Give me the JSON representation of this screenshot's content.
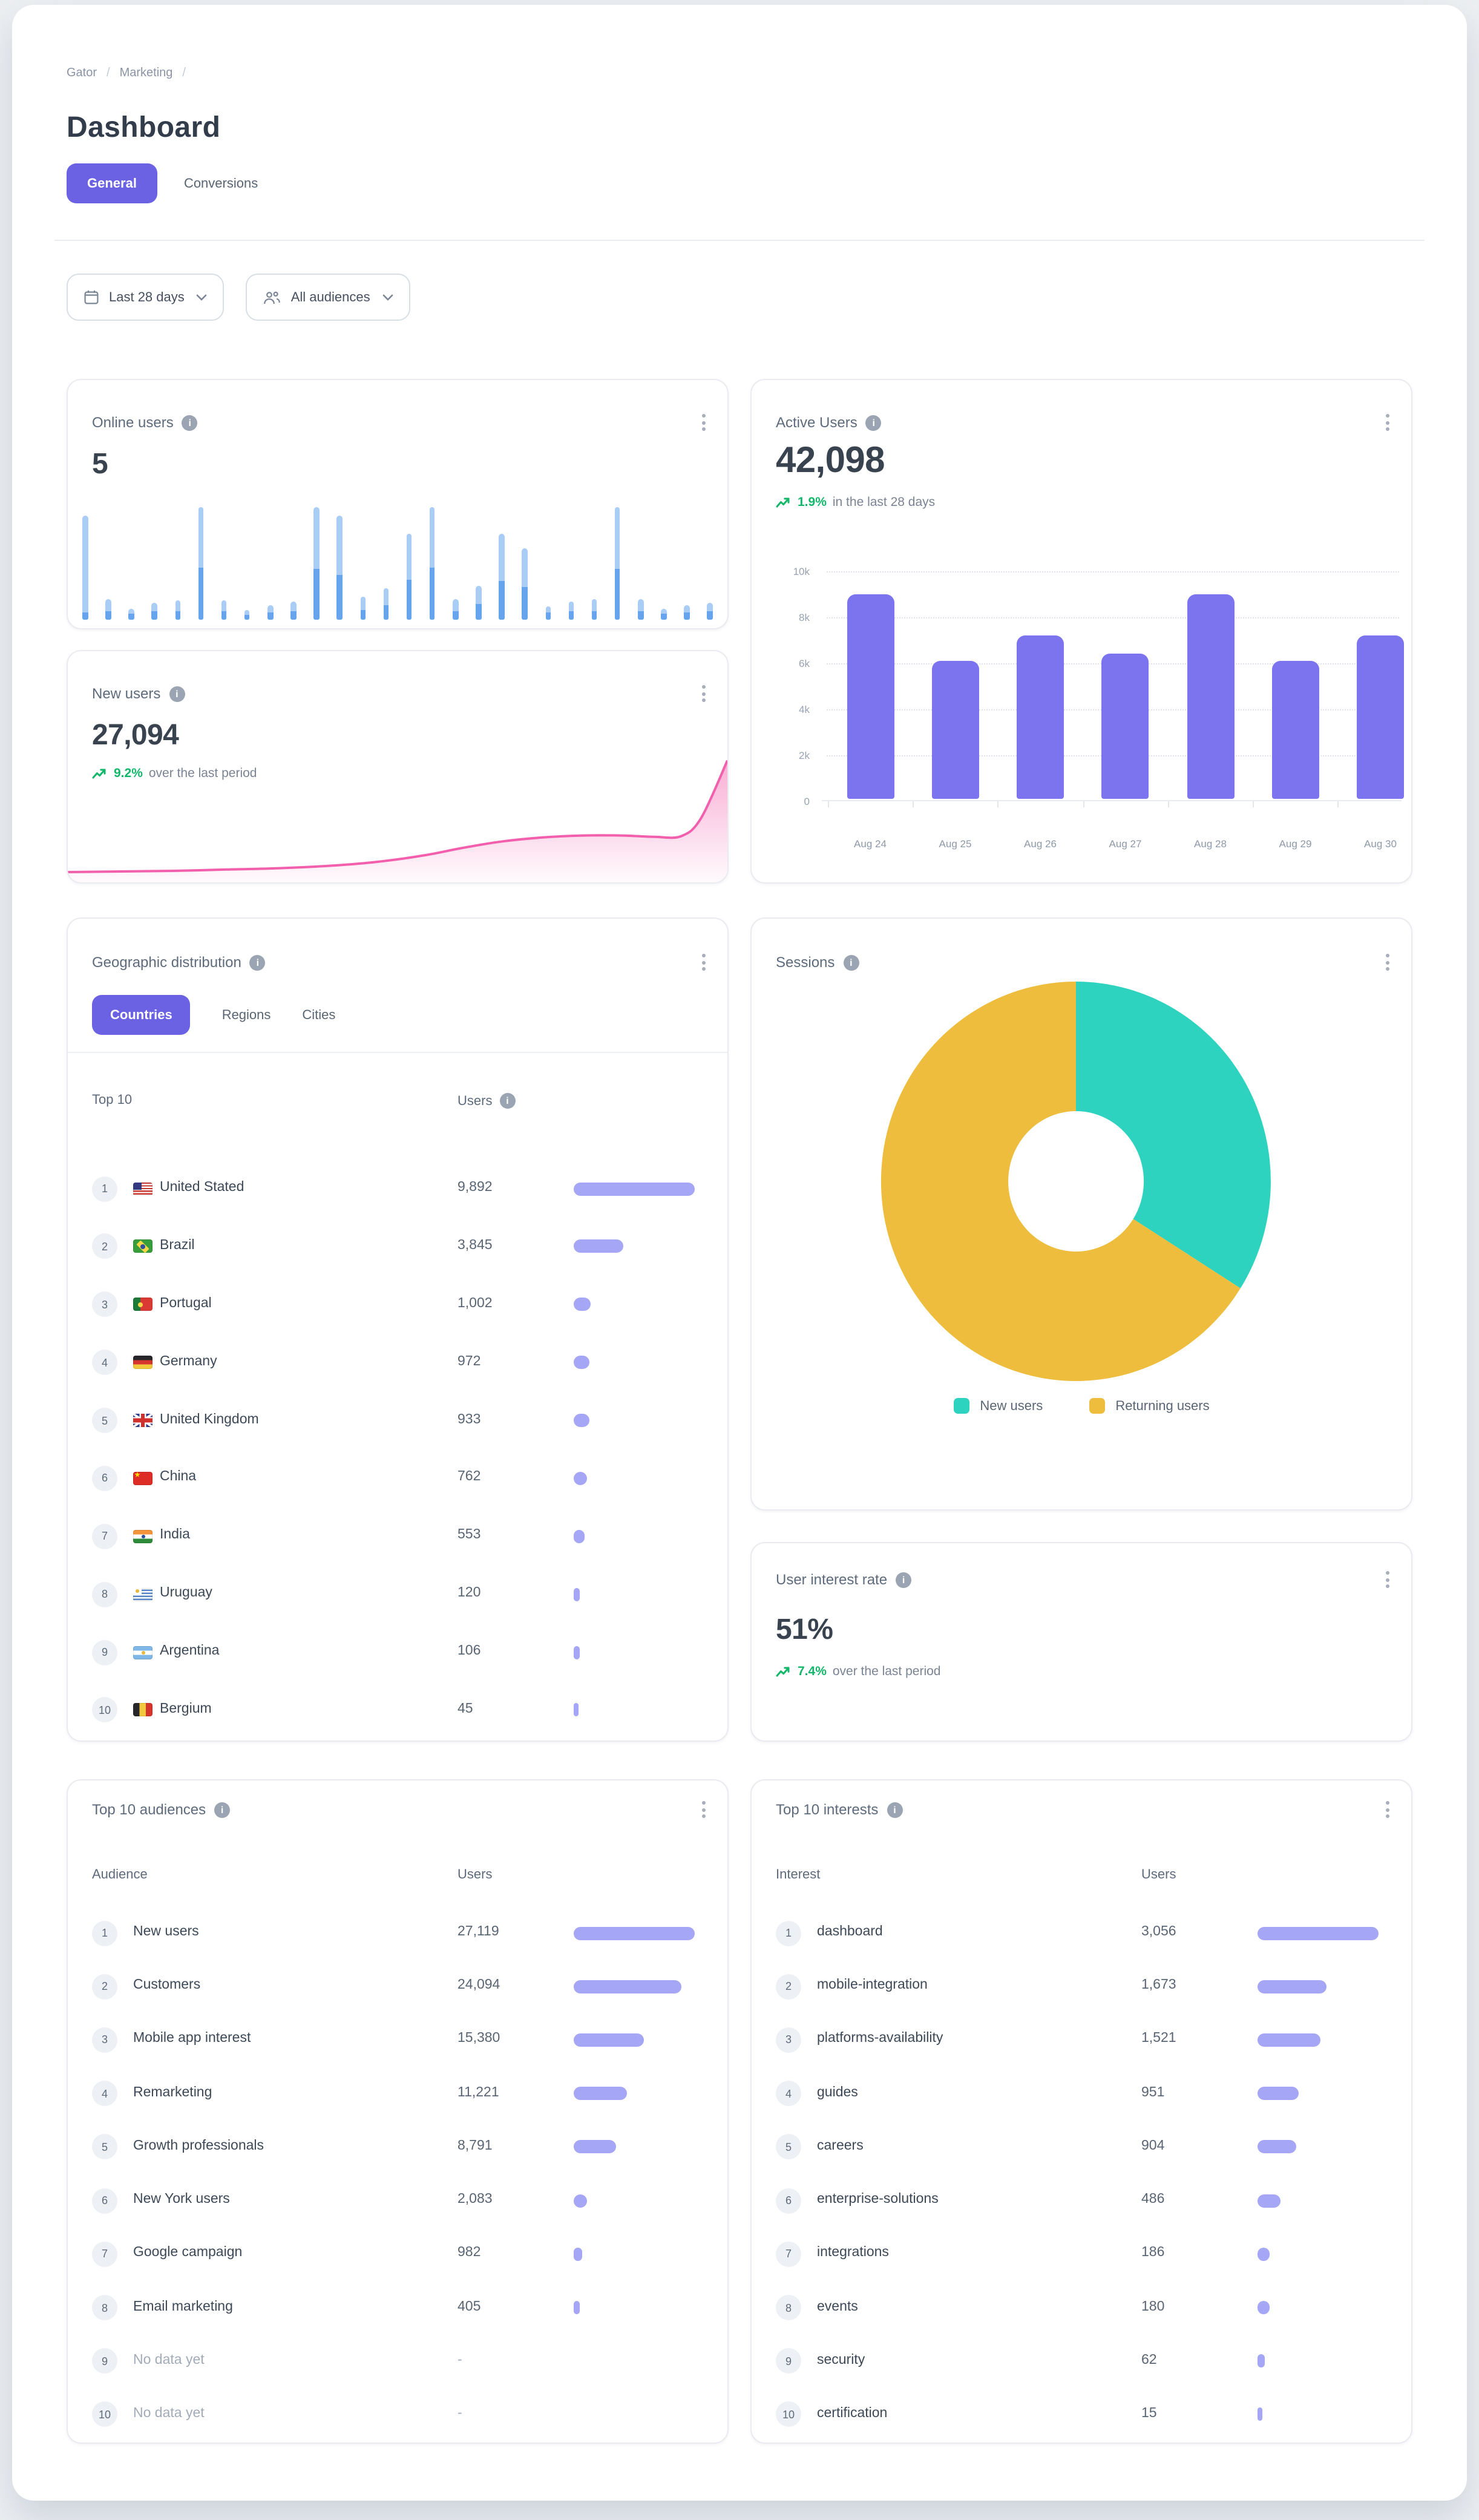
{
  "page": {
    "accent": "#6B61E3",
    "bar_purple": "#7C74EF",
    "mini_bar_purple": "#A5A7F6",
    "green": "#12B76A",
    "outer_background": "#EDEFF2"
  },
  "breadcrumb": {
    "items": [
      "Gator",
      "Marketing"
    ],
    "separator": "/"
  },
  "header": {
    "title": "Dashboard",
    "tabs": [
      {
        "label": "General",
        "active": true
      },
      {
        "label": "Conversions",
        "active": false
      }
    ]
  },
  "filters": {
    "date_range": "Last 28 days",
    "audience": "All audiences"
  },
  "icons": {
    "info": "i"
  },
  "cards": {
    "online_users": {
      "title": "Online users",
      "value": "5"
    },
    "active_users": {
      "title": "Active Users",
      "value": "42,098",
      "change": "1.9%",
      "change_suffix": "in the last 28 days"
    },
    "new_users": {
      "title": "New users",
      "value": "27,094",
      "change": "9.2%",
      "change_suffix": "over the last period"
    },
    "geographic": {
      "title": "Geographic distribution",
      "tabs": [
        "Countries",
        "Regions",
        "Cities"
      ],
      "active_tab": "Countries",
      "col1": "Top 10",
      "col2": "Users",
      "rows": [
        {
          "rank": 1,
          "flag": "us",
          "name": "United Stated",
          "users": "9,892",
          "value": 9892
        },
        {
          "rank": 2,
          "flag": "br",
          "name": "Brazil",
          "users": "3,845",
          "value": 3845
        },
        {
          "rank": 3,
          "flag": "pt",
          "name": "Portugal",
          "users": "1,002",
          "value": 1002
        },
        {
          "rank": 4,
          "flag": "de",
          "name": "Germany",
          "users": "972",
          "value": 972
        },
        {
          "rank": 5,
          "flag": "gb",
          "name": "United Kingdom",
          "users": "933",
          "value": 933
        },
        {
          "rank": 6,
          "flag": "cn",
          "name": "China",
          "users": "762",
          "value": 762
        },
        {
          "rank": 7,
          "flag": "in",
          "name": "India",
          "users": "553",
          "value": 553
        },
        {
          "rank": 8,
          "flag": "uy",
          "name": "Uruguay",
          "users": "120",
          "value": 120
        },
        {
          "rank": 9,
          "flag": "ar",
          "name": "Argentina",
          "users": "106",
          "value": 106
        },
        {
          "rank": 10,
          "flag": "be",
          "name": "Bergium",
          "users": "45",
          "value": 45
        }
      ]
    },
    "sessions": {
      "title": "Sessions",
      "legend": [
        {
          "label": "New users",
          "color": "#2DD3BE"
        },
        {
          "label": "Returning users",
          "color": "#EEBD3D"
        }
      ]
    },
    "interest_rate": {
      "title": "User interest rate",
      "value": "51%",
      "change": "7.4%",
      "change_suffix": "over the last period"
    },
    "audiences": {
      "title": "Top 10 audiences",
      "col1": "Audience",
      "col2": "Users",
      "rows": [
        {
          "rank": 1,
          "name": "New users",
          "users": "27,119",
          "value": 27119
        },
        {
          "rank": 2,
          "name": "Customers",
          "users": "24,094",
          "value": 24094
        },
        {
          "rank": 3,
          "name": "Mobile app interest",
          "users": "15,380",
          "value": 15380
        },
        {
          "rank": 4,
          "name": "Remarketing",
          "users": "11,221",
          "value": 11221
        },
        {
          "rank": 5,
          "name": "Growth professionals",
          "users": "8,791",
          "value": 8791
        },
        {
          "rank": 6,
          "name": "New York users",
          "users": "2,083",
          "value": 2083
        },
        {
          "rank": 7,
          "name": "Google campaign",
          "users": "982",
          "value": 982
        },
        {
          "rank": 8,
          "name": "Email marketing",
          "users": "405",
          "value": 405
        },
        {
          "rank": 9,
          "name": "No data yet",
          "users": "-",
          "value": null
        },
        {
          "rank": 10,
          "name": "No data yet",
          "users": "-",
          "value": null
        }
      ]
    },
    "interests": {
      "title": "Top 10 interests",
      "col1": "Interest",
      "col2": "Users",
      "rows": [
        {
          "rank": 1,
          "name": "dashboard",
          "users": "3,056",
          "value": 3056
        },
        {
          "rank": 2,
          "name": "mobile-integration",
          "users": "1,673",
          "value": 1673
        },
        {
          "rank": 3,
          "name": "platforms-availability",
          "users": "1,521",
          "value": 1521
        },
        {
          "rank": 4,
          "name": "guides",
          "users": "951",
          "value": 951
        },
        {
          "rank": 5,
          "name": "careers",
          "users": "904",
          "value": 904
        },
        {
          "rank": 6,
          "name": "enterprise-solutions",
          "users": "486",
          "value": 486
        },
        {
          "rank": 7,
          "name": "integrations",
          "users": "186",
          "value": 186
        },
        {
          "rank": 8,
          "name": "events",
          "users": "180",
          "value": 180
        },
        {
          "rank": 9,
          "name": "security",
          "users": "62",
          "value": 62
        },
        {
          "rank": 10,
          "name": "certification",
          "users": "15",
          "value": 15
        }
      ]
    }
  },
  "chart_data": [
    {
      "id": "online-users-sparkline",
      "type": "bar",
      "title": "Online users activity sparkline",
      "values_pct": [
        [
          92,
          6
        ],
        [
          18,
          8
        ],
        [
          10,
          5
        ],
        [
          15,
          7
        ],
        [
          17,
          8
        ],
        [
          100,
          46
        ],
        [
          17,
          8
        ],
        [
          9,
          4
        ],
        [
          13,
          6
        ],
        [
          16,
          7
        ],
        [
          100,
          45
        ],
        [
          93,
          40
        ],
        [
          20,
          9
        ],
        [
          28,
          13
        ],
        [
          76,
          35
        ],
        [
          100,
          46
        ],
        [
          18,
          8
        ],
        [
          30,
          14
        ],
        [
          76,
          34
        ],
        [
          63,
          29
        ],
        [
          12,
          6
        ],
        [
          16,
          7
        ],
        [
          18,
          8
        ],
        [
          100,
          45
        ],
        [
          18,
          8
        ],
        [
          10,
          5
        ],
        [
          13,
          6
        ],
        [
          15,
          7
        ]
      ],
      "colors": {
        "light": "#A9CDF5",
        "dark": "#66A5ED"
      }
    },
    {
      "id": "active-users-daily",
      "type": "bar",
      "title": "Active Users by day",
      "categories": [
        "Aug 24",
        "Aug 25",
        "Aug 26",
        "Aug 27",
        "Aug 28",
        "Aug 29",
        "Aug 30"
      ],
      "values": [
        8900,
        6000,
        7100,
        6300,
        8900,
        6000,
        7100
      ],
      "ylim": [
        0,
        10000
      ],
      "yticks": [
        "0",
        "2k",
        "4k",
        "6k",
        "8k",
        "10k"
      ],
      "grid": true,
      "color": "#7C74EF"
    },
    {
      "id": "new-users-trend",
      "type": "area",
      "title": "New users trend",
      "x": [
        0,
        8,
        16,
        24,
        32,
        40,
        47,
        54,
        60,
        66,
        72,
        78,
        84,
        89,
        93,
        96,
        100
      ],
      "values": [
        8,
        8.5,
        9,
        10,
        11,
        13,
        16,
        21,
        27,
        32,
        35,
        36.5,
        36.5,
        35.5,
        36,
        50,
        95
      ],
      "ymax": 100,
      "color": "#F25FAC"
    },
    {
      "id": "sessions-donut",
      "type": "pie",
      "title": "Sessions split",
      "labels": [
        "New users",
        "Returning users"
      ],
      "values": [
        34,
        66
      ],
      "colors": [
        "#2DD3BE",
        "#EEBD3D"
      ],
      "legend_position": "bottom"
    }
  ]
}
